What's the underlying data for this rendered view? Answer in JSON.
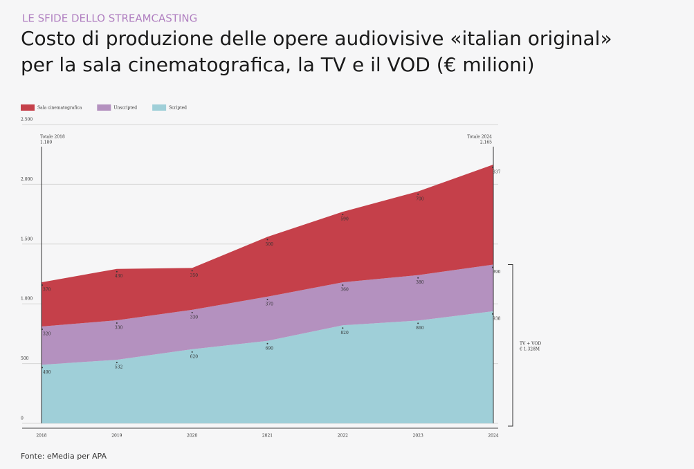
{
  "header": {
    "kicker": "LE SFIDE DELLO STREAMCASTING",
    "title_line1": "Costo di produzione delle opere audiovisive «italian original»",
    "title_line2": "per la sala cinematografica, la TV e il VOD (€ milioni)"
  },
  "source": "Fonte: eMedia per APA",
  "chart_data": {
    "type": "stacked-area",
    "categories": [
      "2018",
      "2019",
      "2020",
      "2021",
      "2022",
      "2023",
      "2024"
    ],
    "series": [
      {
        "name": "Scripted",
        "color": "#9fcfd8",
        "values": [
          490,
          532,
          620,
          690,
          820,
          860,
          938
        ]
      },
      {
        "name": "Unscripted",
        "color": "#b491bf",
        "values": [
          320,
          330,
          330,
          370,
          360,
          380,
          390
        ]
      },
      {
        "name": "Sala cinematografica",
        "color": "#c5404a",
        "values": [
          370,
          430,
          350,
          500,
          590,
          700,
          837
        ]
      }
    ],
    "legend_order": [
      2,
      1,
      0
    ],
    "ylim": [
      0,
      2500
    ],
    "yticks": [
      0,
      {
        "value": 500,
        "label": "500"
      },
      {
        "value": 1000,
        "label": "1.000"
      },
      {
        "value": 1500,
        "label": "1.500"
      },
      {
        "value": 2000,
        "label": "2.000"
      },
      {
        "value": 2500,
        "label": "2.500"
      }
    ],
    "grid": true,
    "annotations": {
      "total_start_label": "Totale 2018",
      "total_start": "1.180",
      "total_end_label": "Totale 2024",
      "total_end": "2.165",
      "bracket_label": "TV + VOD",
      "bracket_value": "€ 1.328M"
    }
  }
}
